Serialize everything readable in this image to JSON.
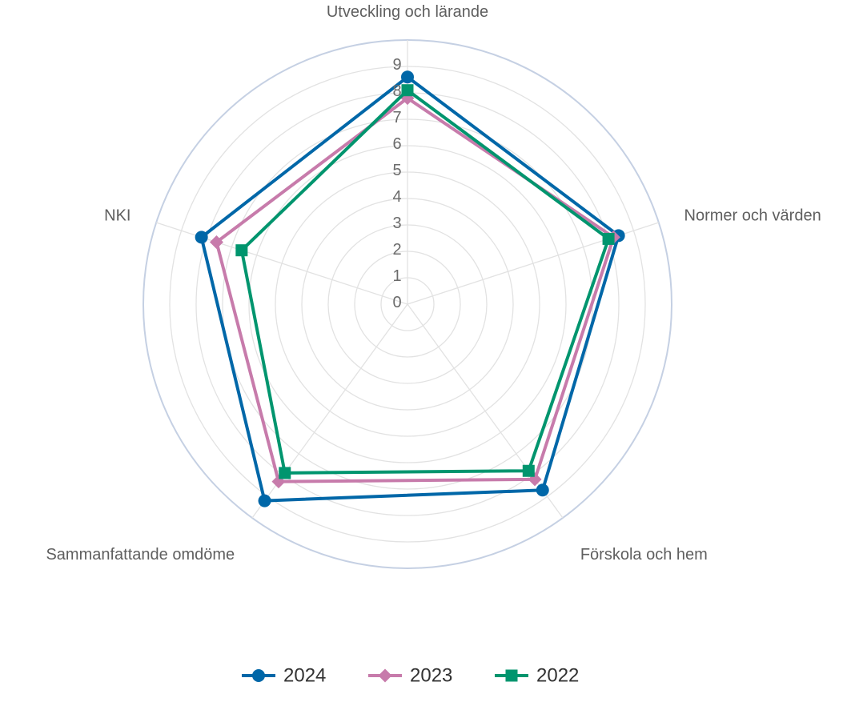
{
  "chart_data": {
    "type": "radar",
    "axes": [
      "Utveckling och lärande",
      "Normer och värden",
      "Förskola och hem",
      "Sammanfattande omdöme",
      "NKI"
    ],
    "r_ticks": [
      "0",
      "1",
      "2",
      "3",
      "4",
      "5",
      "6",
      "7",
      "8",
      "9"
    ],
    "rlim": [
      0,
      10
    ],
    "grid": true,
    "legend_position": "bottom",
    "series": [
      {
        "name": "2024",
        "values": [
          8.6,
          8.4,
          8.7,
          9.2,
          8.2
        ],
        "color": "#0067a8",
        "marker": "circle"
      },
      {
        "name": "2023",
        "values": [
          7.8,
          8.2,
          8.2,
          8.3,
          7.6
        ],
        "color": "#c77bab",
        "marker": "diamond"
      },
      {
        "name": "2022",
        "values": [
          8.1,
          8.0,
          7.8,
          7.9,
          6.6
        ],
        "color": "#00956e",
        "marker": "square"
      }
    ]
  }
}
